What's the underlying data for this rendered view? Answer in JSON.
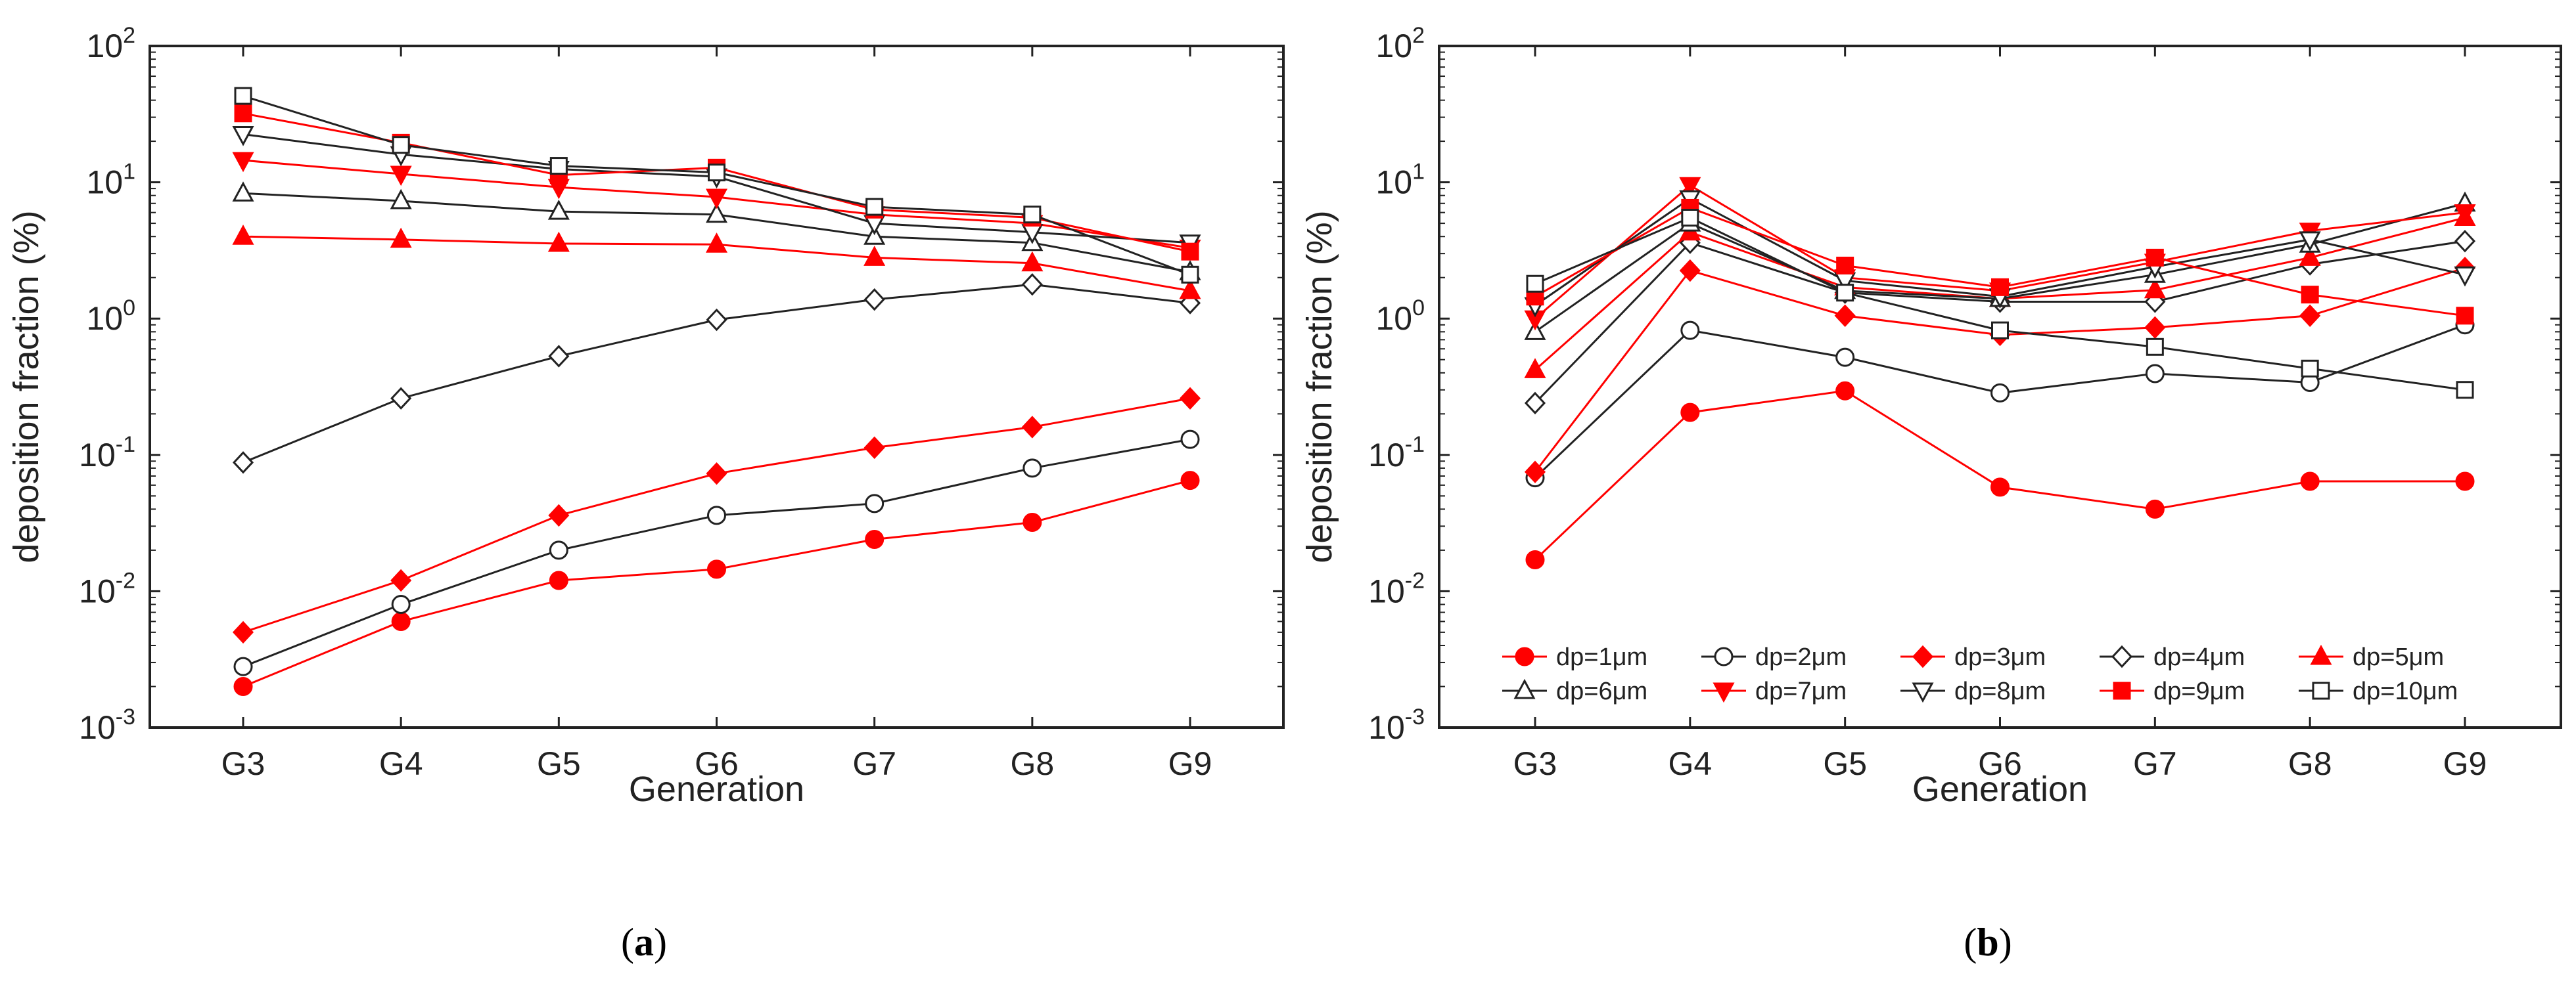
{
  "chart_data": [
    {
      "type": "line",
      "panel_label": "a",
      "xlabel": "Generation",
      "ylabel": "deposition fraction (%)",
      "yscale": "log",
      "ylim": [
        0.001,
        100
      ],
      "yticks": [
        {
          "value": 0.001,
          "base": "10",
          "exp": "-3"
        },
        {
          "value": 0.01,
          "base": "10",
          "exp": "-2"
        },
        {
          "value": 0.1,
          "base": "10",
          "exp": "-1"
        },
        {
          "value": 1,
          "base": "10",
          "exp": "0"
        },
        {
          "value": 10,
          "base": "10",
          "exp": "1"
        },
        {
          "value": 100,
          "base": "10",
          "exp": "2"
        }
      ],
      "categories": [
        "G3",
        "G4",
        "G5",
        "G6",
        "G7",
        "G8",
        "G9"
      ],
      "grid": false,
      "legend": "none",
      "series": [
        {
          "name": "dp=1μm",
          "color": "#ff0000",
          "marker": "circle",
          "filled": true,
          "values": [
            0.002,
            0.006,
            0.012,
            0.0145,
            0.024,
            0.032,
            0.065
          ]
        },
        {
          "name": "dp=2μm",
          "color": "#222222",
          "marker": "circle",
          "filled": false,
          "values": [
            0.0028,
            0.008,
            0.02,
            0.036,
            0.044,
            0.08,
            0.13
          ]
        },
        {
          "name": "dp=3μm",
          "color": "#ff0000",
          "marker": "diamond",
          "filled": true,
          "values": [
            0.005,
            0.012,
            0.036,
            0.073,
            0.113,
            0.16,
            0.26
          ]
        },
        {
          "name": "dp=4μm",
          "color": "#222222",
          "marker": "diamond",
          "filled": false,
          "values": [
            0.088,
            0.26,
            0.53,
            0.98,
            1.38,
            1.78,
            1.3
          ]
        },
        {
          "name": "dp=5μm",
          "color": "#ff0000",
          "marker": "triangle-up",
          "filled": true,
          "values": [
            4.0,
            3.8,
            3.55,
            3.5,
            2.8,
            2.55,
            1.6
          ]
        },
        {
          "name": "dp=6μm",
          "color": "#222222",
          "marker": "triangle-up",
          "filled": false,
          "values": [
            8.3,
            7.3,
            6.1,
            5.8,
            4.0,
            3.6,
            2.2
          ]
        },
        {
          "name": "dp=7μm",
          "color": "#ff0000",
          "marker": "triangle-down",
          "filled": true,
          "values": [
            14.5,
            11.5,
            9.2,
            7.8,
            5.8,
            5.0,
            3.3
          ]
        },
        {
          "name": "dp=8μm",
          "color": "#222222",
          "marker": "triangle-down",
          "filled": false,
          "values": [
            22.5,
            16.0,
            12.5,
            11.0,
            5.0,
            4.3,
            3.6
          ]
        },
        {
          "name": "dp=9μm",
          "color": "#ff0000",
          "marker": "square",
          "filled": true,
          "values": [
            32.0,
            19.5,
            11.3,
            12.8,
            6.3,
            5.5,
            3.1
          ]
        },
        {
          "name": "dp=10μm",
          "color": "#222222",
          "marker": "square",
          "filled": false,
          "values": [
            43.0,
            18.8,
            13.2,
            11.8,
            6.6,
            5.8,
            2.1
          ]
        }
      ]
    },
    {
      "type": "line",
      "panel_label": "b",
      "xlabel": "Generation",
      "ylabel": "deposition fraction (%)",
      "yscale": "log",
      "ylim": [
        0.001,
        100
      ],
      "yticks": [
        {
          "value": 0.001,
          "base": "10",
          "exp": "-3"
        },
        {
          "value": 0.01,
          "base": "10",
          "exp": "-2"
        },
        {
          "value": 0.1,
          "base": "10",
          "exp": "-1"
        },
        {
          "value": 1,
          "base": "10",
          "exp": "0"
        },
        {
          "value": 10,
          "base": "10",
          "exp": "1"
        },
        {
          "value": 100,
          "base": "10",
          "exp": "2"
        }
      ],
      "categories": [
        "G3",
        "G4",
        "G5",
        "G6",
        "G7",
        "G8",
        "G9"
      ],
      "grid": false,
      "legend": "bottom",
      "series": [
        {
          "name": "dp=1μm",
          "color": "#ff0000",
          "marker": "circle",
          "filled": true,
          "values": [
            0.017,
            0.205,
            0.295,
            0.058,
            0.04,
            0.064,
            0.064
          ]
        },
        {
          "name": "dp=2μm",
          "color": "#222222",
          "marker": "circle",
          "filled": false,
          "values": [
            0.068,
            0.82,
            0.52,
            0.285,
            0.395,
            0.34,
            0.9
          ]
        },
        {
          "name": "dp=3μm",
          "color": "#ff0000",
          "marker": "diamond",
          "filled": true,
          "values": [
            0.075,
            2.25,
            1.05,
            0.76,
            0.86,
            1.05,
            2.35
          ]
        },
        {
          "name": "dp=4μm",
          "color": "#222222",
          "marker": "diamond",
          "filled": false,
          "values": [
            0.24,
            3.6,
            1.55,
            1.33,
            1.33,
            2.5,
            3.7
          ]
        },
        {
          "name": "dp=5μm",
          "color": "#ff0000",
          "marker": "triangle-up",
          "filled": true,
          "values": [
            0.42,
            4.3,
            1.7,
            1.4,
            1.62,
            2.8,
            5.5
          ]
        },
        {
          "name": "dp=6μm",
          "color": "#222222",
          "marker": "triangle-up",
          "filled": false,
          "values": [
            0.8,
            5.0,
            1.6,
            1.4,
            2.1,
            3.5,
            7.0
          ]
        },
        {
          "name": "dp=7μm",
          "color": "#ff0000",
          "marker": "triangle-down",
          "filled": true,
          "values": [
            1.0,
            9.5,
            2.0,
            1.6,
            2.6,
            4.4,
            6.0
          ]
        },
        {
          "name": "dp=8μm",
          "color": "#222222",
          "marker": "triangle-down",
          "filled": false,
          "values": [
            1.25,
            7.6,
            1.9,
            1.45,
            2.4,
            3.8,
            2.1
          ]
        },
        {
          "name": "dp=9μm",
          "color": "#ff0000",
          "marker": "square",
          "filled": true,
          "values": [
            1.45,
            6.5,
            2.45,
            1.7,
            2.8,
            1.5,
            1.05
          ]
        },
        {
          "name": "dp=10μm",
          "color": "#222222",
          "marker": "square",
          "filled": false,
          "values": [
            1.8,
            5.5,
            1.55,
            0.82,
            0.62,
            0.43,
            0.3
          ]
        }
      ]
    }
  ]
}
